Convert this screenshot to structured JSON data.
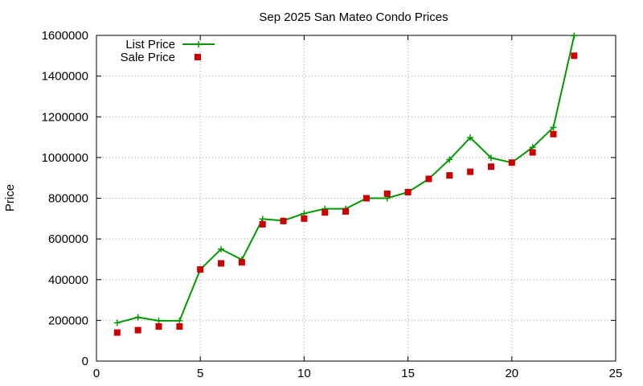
{
  "chart_data": {
    "type": "line",
    "title": "Sep 2025 San Mateo Condo Prices",
    "xlabel": "",
    "ylabel": "Price",
    "xlim": [
      0,
      25
    ],
    "ylim": [
      0,
      1600000
    ],
    "x_ticks": [
      0,
      5,
      10,
      15,
      20,
      25
    ],
    "y_ticks": [
      0,
      200000,
      400000,
      600000,
      800000,
      1000000,
      1200000,
      1400000,
      1600000
    ],
    "grid": true,
    "legend_position": "top-left",
    "x": [
      1,
      2,
      3,
      4,
      5,
      6,
      7,
      8,
      9,
      10,
      11,
      12,
      13,
      14,
      15,
      16,
      17,
      18,
      19,
      20,
      21,
      22,
      23
    ],
    "series": [
      {
        "name": "List Price",
        "style": "linespoints",
        "marker": "plus",
        "color": "#009900",
        "values": [
          188000,
          215000,
          198000,
          198000,
          450000,
          550000,
          498000,
          698000,
          690000,
          725000,
          748000,
          748000,
          800000,
          800000,
          830000,
          895000,
          990000,
          1098000,
          998000,
          975000,
          1050000,
          1148000,
          1598000
        ]
      },
      {
        "name": "Sale Price",
        "style": "points",
        "marker": "square",
        "color": "#cc0000",
        "values": [
          140000,
          152000,
          170000,
          170000,
          450000,
          480000,
          485000,
          672000,
          688000,
          700000,
          730000,
          735000,
          800000,
          822000,
          830000,
          895000,
          912000,
          930000,
          955000,
          975000,
          1025000,
          1115000,
          1500000
        ]
      }
    ]
  }
}
